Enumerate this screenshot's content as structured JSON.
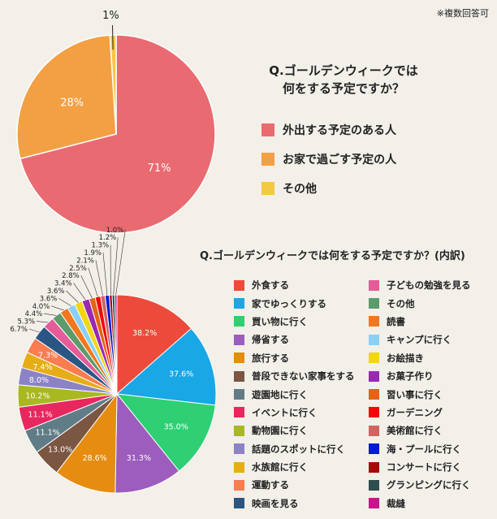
{
  "note": "※複数回答可",
  "chart_data": [
    {
      "type": "pie",
      "title_lines": [
        "Q.ゴールデンウィークでは",
        "何をする予定ですか？"
      ],
      "categories": [
        "外出する予定のある人",
        "お家で過ごす予定の人",
        "その他"
      ],
      "values": [
        71,
        28,
        1
      ],
      "labels": [
        "71%",
        "28%",
        "1%"
      ],
      "colors": [
        "#ea6a71",
        "#f3a044",
        "#f5c844"
      ]
    },
    {
      "type": "pie",
      "title": "Q.ゴールデンウィークでは何をする予定ですか？(内訳)",
      "categories": [
        "外食する",
        "家でゆっくりする",
        "買い物に行く",
        "帰省する",
        "旅行する",
        "普段できない家事をする",
        "遊園地に行く",
        "イベントに行く",
        "動物園に行く",
        "話題のスポットに行く",
        "水族館に行く",
        "運動する",
        "映画を見る",
        "子どもの勉強を見る",
        "その他",
        "読書",
        "キャンプに行く",
        "お絵描き",
        "お菓子作り",
        "習い事に行く",
        "ガーデニング",
        "美術館に行く",
        "海・プールに行く",
        "コンサートに行く",
        "グランピングに行く",
        "裁縫"
      ],
      "values": [
        38.2,
        37.6,
        35.0,
        31.3,
        28.6,
        13.0,
        11.1,
        11.1,
        10.2,
        8.0,
        7.4,
        7.3,
        6.7,
        5.3,
        4.4,
        4.0,
        3.6,
        3.6,
        3.4,
        2.8,
        2.5,
        2.1,
        1.9,
        1.3,
        1.2,
        1.0
      ],
      "labels": [
        "38.2%",
        "37.6%",
        "35.0%",
        "31.3%",
        "28.6%",
        "13.0%",
        "11.1%",
        "11.1%",
        "10.2%",
        "8.0%",
        "7.4%",
        "7.3%",
        "6.7%",
        "5.3%",
        "4.4%",
        "4.0%",
        "3.6%",
        "3.6%",
        "3.4%",
        "2.8%",
        "2.5%",
        "2.1%",
        "1.9%",
        "1.3%",
        "1.2%",
        "1.0%"
      ],
      "colors": [
        "#ec4b3c",
        "#1aa7e6",
        "#2fcf73",
        "#9c5dbd",
        "#e58c11",
        "#7a5643",
        "#607d87",
        "#e8275f",
        "#a8b820",
        "#8c83c6",
        "#e6ad17",
        "#fb7c4f",
        "#2b5684",
        "#e55c98",
        "#5c9b6c",
        "#f3771e",
        "#8ccff5",
        "#f2d614",
        "#9928b3",
        "#e36412",
        "#f10909",
        "#d26363",
        "#0019d4",
        "#a30b08",
        "#2e4d4d",
        "#c5168d"
      ]
    }
  ]
}
